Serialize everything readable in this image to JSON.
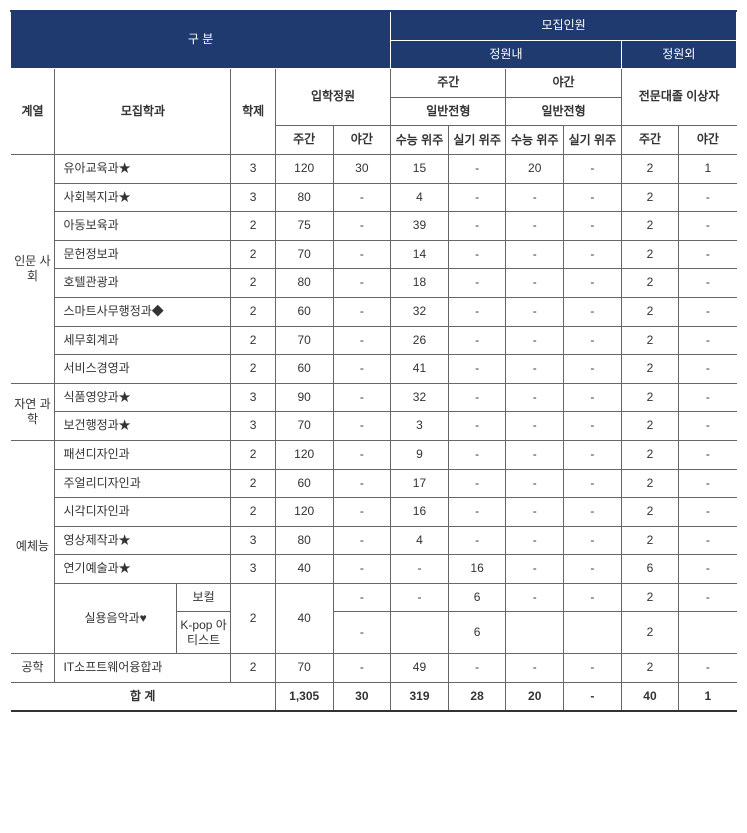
{
  "colors": {
    "header_bg": "#1f3a6e",
    "header_fg": "#ffffff",
    "border": "#666666",
    "text": "#333333",
    "bg": "#ffffff"
  },
  "header": {
    "gubun": "구  분",
    "recruit": "모집인원",
    "in_quota": "정원내",
    "out_quota": "정원외",
    "cat": "계열",
    "dept": "모집학과",
    "year": "학제",
    "cap": "입학정원",
    "day": "주간",
    "night": "야간",
    "general": "일반전형",
    "college_grad": "전문대졸 이상자",
    "sn": "수능\n위주",
    "sk": "실기\n위주"
  },
  "cats": {
    "hum": "인문\n사회",
    "nat": "자연\n과학",
    "art": "예체능",
    "eng": "공학",
    "music_base": "실용음악과♥",
    "music_vocal": "보컬",
    "music_kpop": "K-pop\n아티스트"
  },
  "rows": {
    "r0": {
      "dept": "유아교육과★",
      "yr": "3",
      "d": "120",
      "n": "30",
      "ds": "15",
      "dk": "-",
      "ns": "20",
      "nk": "-",
      "od": "2",
      "on": "1"
    },
    "r1": {
      "dept": "사회복지과★",
      "yr": "3",
      "d": "80",
      "n": "-",
      "ds": "4",
      "dk": "-",
      "ns": "-",
      "nk": "-",
      "od": "2",
      "on": "-"
    },
    "r2": {
      "dept": "아동보육과",
      "yr": "2",
      "d": "75",
      "n": "-",
      "ds": "39",
      "dk": "-",
      "ns": "-",
      "nk": "-",
      "od": "2",
      "on": "-"
    },
    "r3": {
      "dept": "문헌정보과",
      "yr": "2",
      "d": "70",
      "n": "-",
      "ds": "14",
      "dk": "-",
      "ns": "-",
      "nk": "-",
      "od": "2",
      "on": "-"
    },
    "r4": {
      "dept": "호텔관광과",
      "yr": "2",
      "d": "80",
      "n": "-",
      "ds": "18",
      "dk": "-",
      "ns": "-",
      "nk": "-",
      "od": "2",
      "on": "-"
    },
    "r5": {
      "dept": "스마트사무행정과◆",
      "yr": "2",
      "d": "60",
      "n": "-",
      "ds": "32",
      "dk": "-",
      "ns": "-",
      "nk": "-",
      "od": "2",
      "on": "-"
    },
    "r6": {
      "dept": "세무회계과",
      "yr": "2",
      "d": "70",
      "n": "-",
      "ds": "26",
      "dk": "-",
      "ns": "-",
      "nk": "-",
      "od": "2",
      "on": "-"
    },
    "r7": {
      "dept": "서비스경영과",
      "yr": "2",
      "d": "60",
      "n": "-",
      "ds": "41",
      "dk": "-",
      "ns": "-",
      "nk": "-",
      "od": "2",
      "on": "-"
    },
    "r8": {
      "dept": "식품영양과★",
      "yr": "3",
      "d": "90",
      "n": "-",
      "ds": "32",
      "dk": "-",
      "ns": "-",
      "nk": "-",
      "od": "2",
      "on": "-"
    },
    "r9": {
      "dept": "보건행정과★",
      "yr": "3",
      "d": "70",
      "n": "-",
      "ds": "3",
      "dk": "-",
      "ns": "-",
      "nk": "-",
      "od": "2",
      "on": "-"
    },
    "r10": {
      "dept": "패션디자인과",
      "yr": "2",
      "d": "120",
      "n": "-",
      "ds": "9",
      "dk": "-",
      "ns": "-",
      "nk": "-",
      "od": "2",
      "on": "-"
    },
    "r11": {
      "dept": "주얼리디자인과",
      "yr": "2",
      "d": "60",
      "n": "-",
      "ds": "17",
      "dk": "-",
      "ns": "-",
      "nk": "-",
      "od": "2",
      "on": "-"
    },
    "r12": {
      "dept": "시각디자인과",
      "yr": "2",
      "d": "120",
      "n": "-",
      "ds": "16",
      "dk": "-",
      "ns": "-",
      "nk": "-",
      "od": "2",
      "on": "-"
    },
    "r13": {
      "dept": "영상제작과★",
      "yr": "3",
      "d": "80",
      "n": "-",
      "ds": "4",
      "dk": "-",
      "ns": "-",
      "nk": "-",
      "od": "2",
      "on": "-"
    },
    "r14": {
      "dept": "연기예술과★",
      "yr": "3",
      "d": "40",
      "n": "-",
      "ds": "-",
      "dk": "16",
      "ns": "-",
      "nk": "-",
      "od": "6",
      "on": "-"
    },
    "r15": {
      "n": "-",
      "ds": "-",
      "dk": "6",
      "ns": "-",
      "nk": "-",
      "od": "2",
      "on": "-"
    },
    "r16": {
      "n": "-",
      "dk": "6",
      "od": "2"
    },
    "r15_yr": "2",
    "r15_d": "40",
    "r17": {
      "dept": "IT소프트웨어융합과",
      "yr": "2",
      "d": "70",
      "n": "-",
      "ds": "49",
      "dk": "-",
      "ns": "-",
      "nk": "-",
      "od": "2",
      "on": "-"
    }
  },
  "total": {
    "label": "합    계",
    "d": "1,305",
    "n": "30",
    "ds": "319",
    "dk": "28",
    "ns": "20",
    "nk": "-",
    "od": "40",
    "on": "1"
  }
}
